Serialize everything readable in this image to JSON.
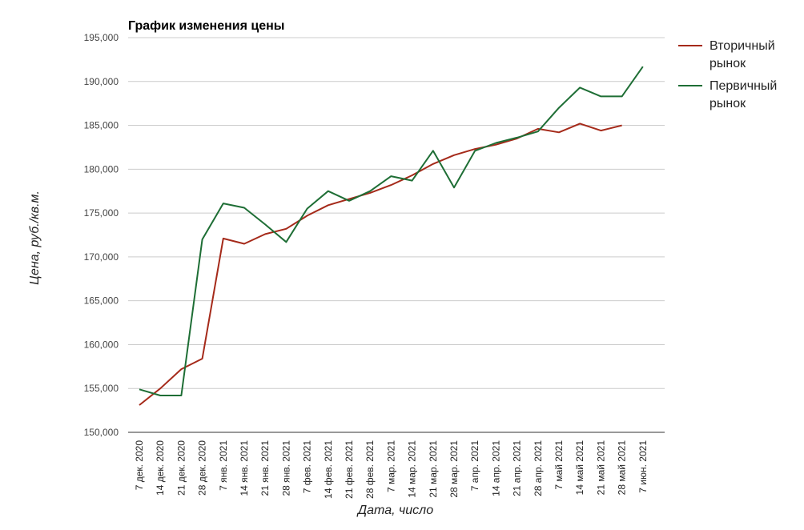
{
  "chart_data": {
    "type": "line",
    "title": "График изменения цены",
    "xlabel": "Дата, число",
    "ylabel": "Цена, руб./кв.м.",
    "ylim": [
      150000,
      195000
    ],
    "yticks": [
      "150,000",
      "155,000",
      "160,000",
      "165,000",
      "170,000",
      "175,000",
      "180,000",
      "185,000",
      "190,000",
      "195,000"
    ],
    "grid": true,
    "legend_position": "right",
    "categories": [
      "7 дек. 2020",
      "14 дек. 2020",
      "21 дек. 2020",
      "28 дек. 2020",
      "7 янв. 2021",
      "14 янв. 2021",
      "21 янв. 2021",
      "28 янв. 2021",
      "7 фев. 2021",
      "14 фев. 2021",
      "21 фев. 2021",
      "28 фев. 2021",
      "7 мар. 2021",
      "14 мар. 2021",
      "21 мар. 2021",
      "28 мар. 2021",
      "7 апр. 2021",
      "14 апр. 2021",
      "21 апр. 2021",
      "28 апр. 2021",
      "7 май 2021",
      "14 май 2021",
      "21 май 2021",
      "28 май 2021",
      "7 июн. 2021"
    ],
    "series": [
      {
        "name": "Вторичный рынок",
        "color": "#a52a1a",
        "values": [
          153100,
          155000,
          157200,
          158400,
          172100,
          171500,
          172600,
          173200,
          174700,
          175900,
          176600,
          177300,
          178200,
          179300,
          180600,
          181600,
          182300,
          182800,
          183500,
          184600,
          184200,
          185200,
          184400,
          185000,
          null
        ]
      },
      {
        "name": "Первичный рынок",
        "color": "#1e6e35",
        "values": [
          154900,
          154200,
          154200,
          172000,
          176100,
          175600,
          173700,
          171700,
          175500,
          177500,
          176400,
          177500,
          179200,
          178700,
          182100,
          177900,
          182100,
          183000,
          183600,
          184300,
          187000,
          189300,
          188300,
          188300,
          191700
        ]
      }
    ]
  }
}
